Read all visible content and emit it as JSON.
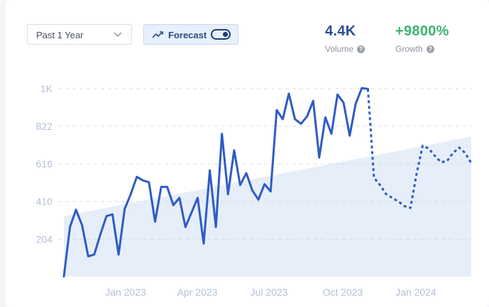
{
  "controls": {
    "period": "Past 1 Year",
    "forecast_label": "Forecast",
    "forecast_on": true
  },
  "stats": {
    "volume": {
      "value": "4.4K",
      "label": "Volume"
    },
    "growth": {
      "value": "+9800%",
      "label": "Growth"
    }
  },
  "icons": {
    "chevron": "chevron-down-icon",
    "trend": "trending-up-icon",
    "help": "help-icon"
  },
  "help_glyph": "?",
  "colors": {
    "line": "#2f5bc4",
    "trend_fill": "#e6eef9",
    "volume": "#2f4f8f",
    "growth": "#3cb371",
    "grid": "#d6dce6",
    "tick": "#b2c0d8"
  },
  "chart_data": {
    "type": "line",
    "title": "",
    "xlabel": "",
    "ylabel": "",
    "ylim": [
      0,
      1027
    ],
    "y_ticks": [
      {
        "value": 204,
        "label": "204"
      },
      {
        "value": 410,
        "label": "410"
      },
      {
        "value": 616,
        "label": "616"
      },
      {
        "value": 822,
        "label": "822"
      },
      {
        "value": 1027,
        "label": "1K"
      }
    ],
    "x_tick_labels": [
      "Jan 2023",
      "Apr 2023",
      "Jul 2023",
      "Oct 2023",
      "Jan 2024"
    ],
    "grid": "horizontal dashed",
    "series": [
      {
        "style": "solid",
        "values": [
          0,
          270,
          365,
          280,
          110,
          120,
          230,
          330,
          340,
          120,
          370,
          450,
          545,
          525,
          515,
          300,
          490,
          490,
          390,
          430,
          270,
          350,
          430,
          180,
          580,
          270,
          780,
          450,
          690,
          500,
          565,
          470,
          420,
          505,
          465,
          910,
          860,
          1000,
          860,
          835,
          875,
          960,
          650,
          870,
          780,
          995,
          950,
          770,
          945,
          1030,
          1025
        ]
      },
      {
        "style": "dotted",
        "values": [
          1025,
          540,
          500,
          450,
          430,
          410,
          385,
          375,
          560,
          715,
          700,
          660,
          625,
          630,
          675,
          705,
          675,
          620
        ]
      }
    ],
    "trend_area": {
      "start": 330,
      "end": 765
    }
  }
}
